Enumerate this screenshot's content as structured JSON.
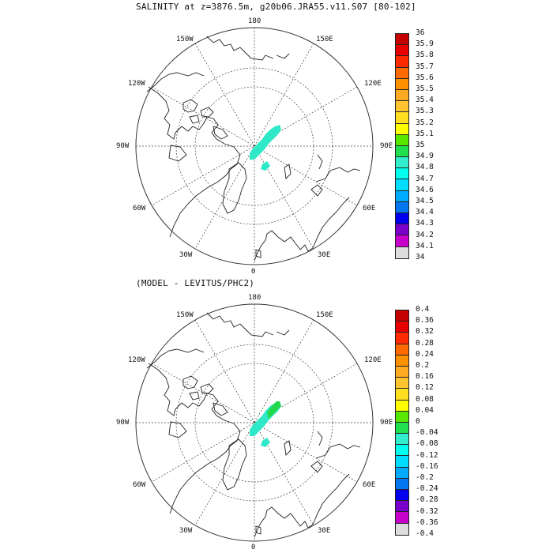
{
  "top_panel": {
    "title": "SALINITY at z=3876.5m, g20b06.JRA55.v11.S07 [80-102]",
    "labels": {
      "top": "180",
      "bottom": "0",
      "left": "90W",
      "right": "90E",
      "upper_left_1": "150W",
      "upper_left_2": "120W",
      "upper_right_1": "150E",
      "upper_right_2": "120E",
      "lower_left_1": "60W",
      "lower_left_2": "30W",
      "lower_right_1": "60E",
      "lower_right_2": "30E"
    },
    "colorbar": {
      "labels": [
        "36",
        "35.9",
        "35.8",
        "35.7",
        "35.6",
        "35.5",
        "35.4",
        "35.3",
        "35.2",
        "35.1",
        "35",
        "34.9",
        "34.8",
        "34.7",
        "34.6",
        "34.5",
        "34.4",
        "34.3",
        "34.2",
        "34.1",
        "34"
      ],
      "colors": [
        "#c40000",
        "#e80000",
        "#ff2a00",
        "#ff6a00",
        "#ff9000",
        "#ffaa20",
        "#ffc430",
        "#ffdf20",
        "#ffff00",
        "#58e800",
        "#20e050",
        "#33eecc",
        "#00ffee",
        "#00ddff",
        "#00aaff",
        "#0077ee",
        "#0000ee",
        "#7a00cc",
        "#c800cc",
        "#dddddd",
        "#707070"
      ]
    }
  },
  "bottom_panel": {
    "title": "(MODEL - LEVITUS/PHC2)",
    "labels": {
      "top": "180",
      "bottom": "0",
      "left": "90W",
      "right": "90E",
      "upper_left_1": "150W",
      "upper_left_2": "120W",
      "upper_right_1": "150E",
      "upper_right_2": "120E",
      "lower_left_1": "60W",
      "lower_left_2": "30W",
      "lower_right_1": "60E",
      "lower_right_2": "30E"
    },
    "colorbar": {
      "labels": [
        "0.4",
        "0.36",
        "0.32",
        "0.28",
        "0.24",
        "0.2",
        "0.16",
        "0.12",
        "0.08",
        "0.04",
        "0",
        "-0.04",
        "-0.08",
        "-0.12",
        "-0.16",
        "-0.2",
        "-0.24",
        "-0.28",
        "-0.32",
        "-0.36",
        "-0.4"
      ],
      "colors": [
        "#c40000",
        "#e80000",
        "#ff2a00",
        "#ff6a00",
        "#ff9000",
        "#ffaa20",
        "#ffc430",
        "#ffdf20",
        "#ffff00",
        "#58e800",
        "#20e050",
        "#33eecc",
        "#00ffee",
        "#00ddff",
        "#00aaff",
        "#0077ee",
        "#0000ee",
        "#7a00cc",
        "#c800cc",
        "#dddddd",
        "#707070"
      ]
    }
  },
  "field_colors": {
    "top": "#2ee8c8",
    "bottom_main": "#2ee8c8",
    "bottom_tip": "#22d84a"
  }
}
